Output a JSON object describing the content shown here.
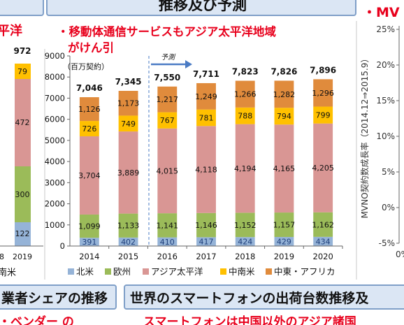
{
  "header": {
    "main_title": "推移及び予測",
    "right_title": "・MV"
  },
  "subtitle": {
    "line1": "・移動体通信サービスもアジア太平洋地域",
    "line2": "がけん引"
  },
  "left_fragment": {
    "title_fragment": "平洋",
    "total": "972",
    "segments": [
      {
        "label": "79"
      },
      {
        "label": "472"
      },
      {
        "label": "300"
      },
      {
        "label": "122"
      }
    ],
    "tick_left": "8",
    "year": "2019",
    "legend_fragment": "南米"
  },
  "bottom": {
    "left_box": "業者シェアの推移",
    "right_box": "世界のスマートフォンの出荷台数推移及",
    "left_red": "・ベンダー の",
    "right_red": "スマートフォンは中国以外のアジア諸国"
  },
  "right_axis": {
    "ylabel": "MVNO契約数成長率（2014.12⇒2015.9）",
    "ticks": [
      "25%",
      "20%",
      "15%",
      "10%",
      "5%",
      "0%",
      "-5%"
    ],
    "corner": "0%"
  },
  "chart_data": {
    "type": "bar",
    "stacked": true,
    "unit_label": "（百万契約）",
    "forecast_label": "予測",
    "categories": [
      "2014",
      "2015",
      "2016",
      "2017",
      "2018",
      "2019",
      "2020"
    ],
    "totals": [
      7046,
      7345,
      7550,
      7711,
      7823,
      7826,
      7896
    ],
    "totals_text": [
      "7,046",
      "7,345",
      "7,550",
      "7,711",
      "7,823",
      "7,826",
      "7,896"
    ],
    "ylim": [
      0,
      9000
    ],
    "yticks": [
      0,
      1000,
      2000,
      3000,
      4000,
      5000,
      6000,
      7000,
      8000,
      9000
    ],
    "grid": false,
    "legend_position": "bottom",
    "series": [
      {
        "name": "北米",
        "color": "#95b3d7",
        "values": [
          391,
          402,
          410,
          417,
          424,
          429,
          434
        ],
        "labels": [
          "391",
          "402",
          "410",
          "417",
          "424",
          "429",
          "434"
        ]
      },
      {
        "name": "欧州",
        "color": "#9bbb59",
        "values": [
          1099,
          1133,
          1141,
          1146,
          1152,
          1157,
          1162
        ],
        "labels": [
          "1,099",
          "1,133",
          "1,141",
          "1,146",
          "1,152",
          "1,157",
          "1,162"
        ]
      },
      {
        "name": "アジア太平洋",
        "color": "#d99694",
        "values": [
          3704,
          3889,
          4015,
          4118,
          4194,
          4165,
          4205
        ],
        "labels": [
          "3,704",
          "3,889",
          "4,015",
          "4,118",
          "4,194",
          "4,165",
          "4,205"
        ]
      },
      {
        "name": "中南米",
        "color": "#ffc000",
        "values": [
          726,
          749,
          767,
          781,
          788,
          794,
          799
        ],
        "labels": [
          "726",
          "749",
          "767",
          "781",
          "788",
          "794",
          "799"
        ]
      },
      {
        "name": "中東・アフリカ",
        "color": "#e08b3c",
        "values": [
          1126,
          1173,
          1217,
          1249,
          1266,
          1282,
          1296
        ],
        "labels": [
          "1,126",
          "1,173",
          "1,217",
          "1,249",
          "1,266",
          "1,282",
          "1,296"
        ]
      }
    ]
  }
}
